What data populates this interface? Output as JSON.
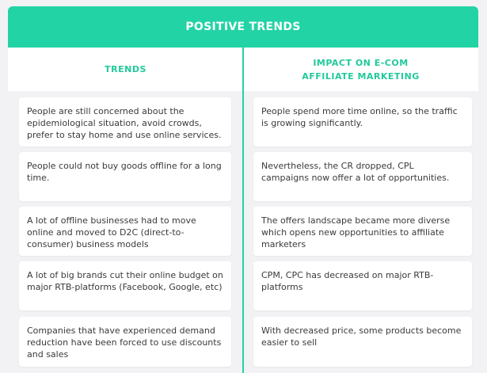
{
  "title": "POSITIVE TRENDS",
  "columns": {
    "left": "TRENDS",
    "right": "IMPACT ON E-COM AFFILIATE MARKETING"
  },
  "rows": [
    {
      "trend": "People are still concerned about the epidemiological situation, avoid crowds, prefer to stay home and use online services.",
      "impact": "People spend more time online, so the traffic is growing significantly."
    },
    {
      "trend": "People could not buy goods offline for a long time.",
      "impact": "Nevertheless, the CR dropped, CPL campaigns now offer a lot of opportunities."
    },
    {
      "trend": "A lot of offline businesses had to move online and moved to D2C (direct-to-consumer) business models",
      "impact": "The offers landscape became more diverse which opens new opportunities to affiliate marketers"
    },
    {
      "trend": "A lot of  big brands cut their online budget on major RTB-platforms (Facebook, Google, etc)",
      "impact": "CPM, CPC has decreased on major RTB-platforms"
    },
    {
      "trend": "Companies that have experienced demand reduction have been forced to use discounts and sales",
      "impact": "With decreased price, some products become easier to sell"
    }
  ]
}
